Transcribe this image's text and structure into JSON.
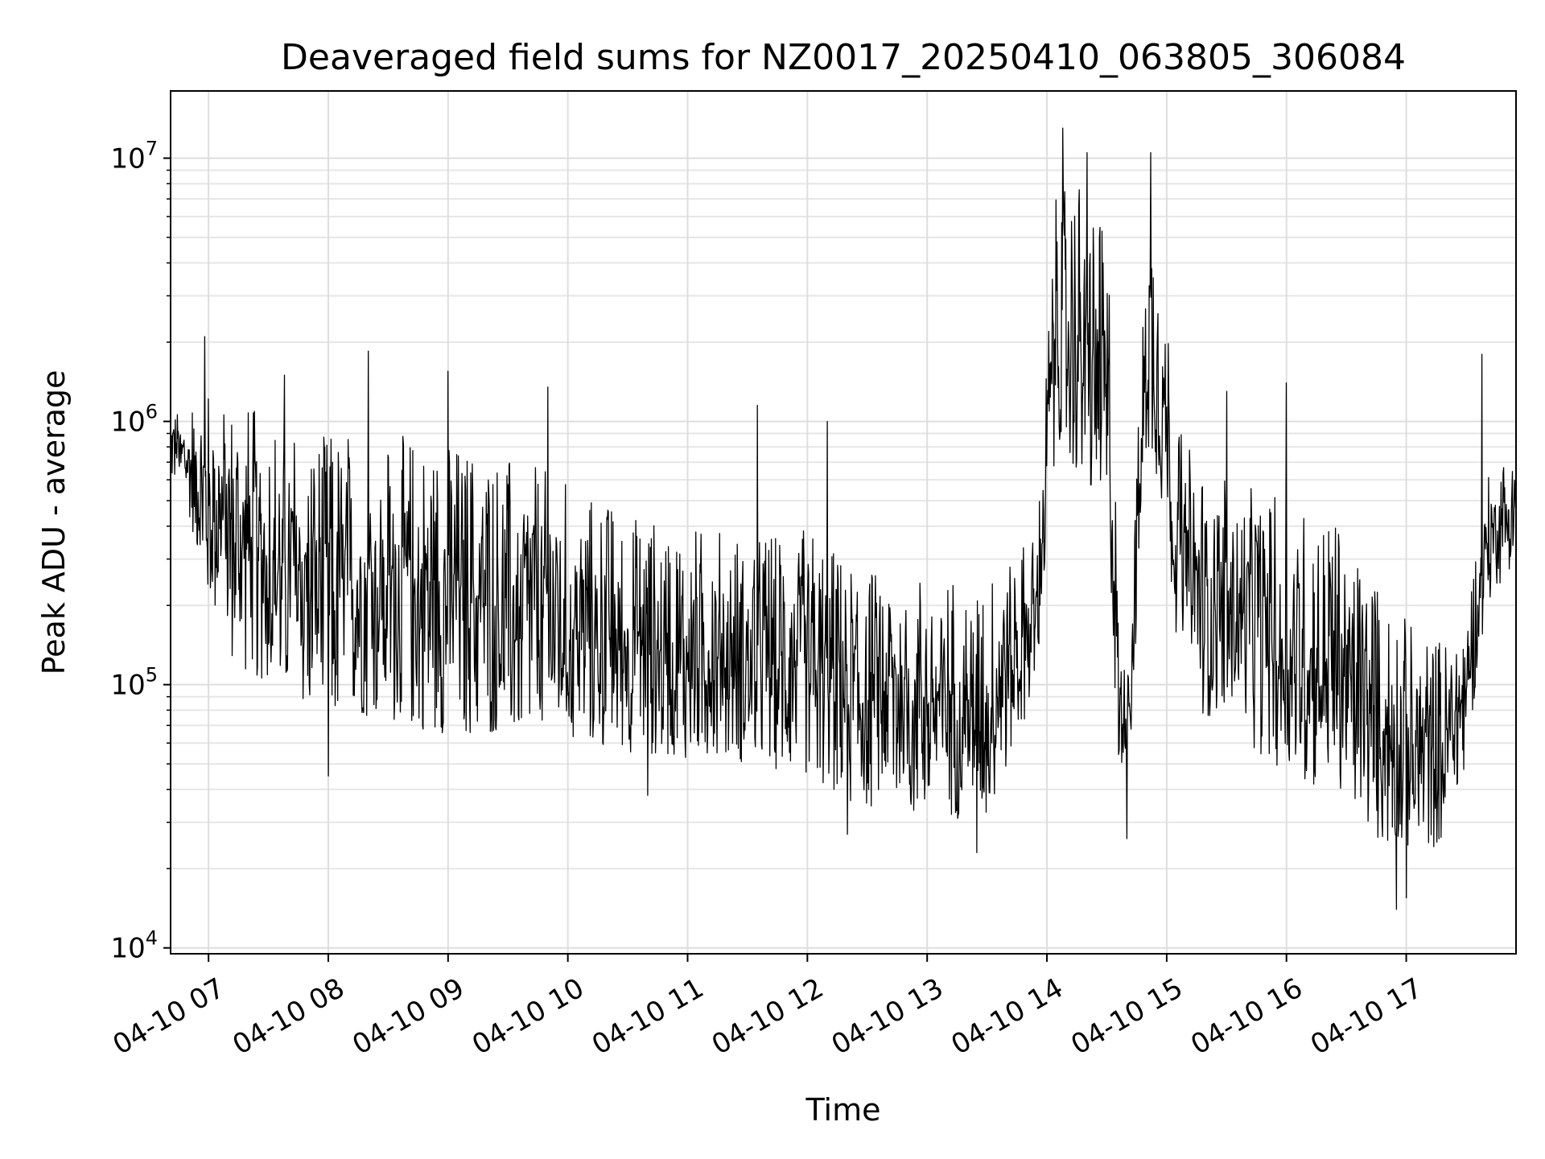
{
  "chart_data": {
    "type": "line",
    "title": "Deaveraged field sums for NZ0017_20250410_063805_306084",
    "xlabel": "Time",
    "ylabel": "Peak ADU - average",
    "yscale": "log",
    "ylim": [
      9500,
      18000000
    ],
    "xlim": [
      "2025-04-10 06:41",
      "2025-04-10 17:55"
    ],
    "grid": true,
    "line_color": "#000000",
    "x_ticks": [
      {
        "t": "2025-04-10 07:00",
        "label": "04-10 07"
      },
      {
        "t": "2025-04-10 08:00",
        "label": "04-10 08"
      },
      {
        "t": "2025-04-10 09:00",
        "label": "04-10 09"
      },
      {
        "t": "2025-04-10 10:00",
        "label": "04-10 10"
      },
      {
        "t": "2025-04-10 11:00",
        "label": "04-10 11"
      },
      {
        "t": "2025-04-10 12:00",
        "label": "04-10 12"
      },
      {
        "t": "2025-04-10 13:00",
        "label": "04-10 13"
      },
      {
        "t": "2025-04-10 14:00",
        "label": "04-10 14"
      },
      {
        "t": "2025-04-10 15:00",
        "label": "04-10 15"
      },
      {
        "t": "2025-04-10 16:00",
        "label": "04-10 16"
      },
      {
        "t": "2025-04-10 17:00",
        "label": "04-10 17"
      }
    ],
    "y_ticks": [
      {
        "value": 10000,
        "base": "10",
        "exp": "4"
      },
      {
        "value": 100000,
        "base": "10",
        "exp": "5"
      },
      {
        "value": 1000000,
        "base": "10",
        "exp": "6"
      },
      {
        "value": 10000000,
        "base": "10",
        "exp": "7"
      }
    ],
    "series": [
      {
        "envelope": [
          {
            "t": "2025-04-10 06:41",
            "low": 600000,
            "high": 1100000
          },
          {
            "t": "2025-04-10 06:50",
            "low": 450000,
            "high": 1200000
          },
          {
            "t": "2025-04-10 07:00",
            "low": 200000,
            "high": 1300000
          },
          {
            "t": "2025-04-10 07:15",
            "low": 110000,
            "high": 1200000
          },
          {
            "t": "2025-04-10 07:30",
            "low": 100000,
            "high": 1100000
          },
          {
            "t": "2025-04-10 07:45",
            "low": 80000,
            "high": 900000
          },
          {
            "t": "2025-04-10 08:00",
            "low": 70000,
            "high": 900000
          },
          {
            "t": "2025-04-10 08:15",
            "low": 75000,
            "high": 950000
          },
          {
            "t": "2025-04-10 08:30",
            "low": 70000,
            "high": 900000
          },
          {
            "t": "2025-04-10 09:00",
            "low": 65000,
            "high": 850000
          },
          {
            "t": "2025-04-10 09:30",
            "low": 62000,
            "high": 750000
          },
          {
            "t": "2025-04-10 10:00",
            "low": 60000,
            "high": 600000
          },
          {
            "t": "2025-04-10 10:30",
            "low": 55000,
            "high": 450000
          },
          {
            "t": "2025-04-10 11:00",
            "low": 52000,
            "high": 400000
          },
          {
            "t": "2025-04-10 11:30",
            "low": 50000,
            "high": 380000
          },
          {
            "t": "2025-04-10 12:00",
            "low": 45000,
            "high": 400000
          },
          {
            "t": "2025-04-10 12:20",
            "low": 35000,
            "high": 300000
          },
          {
            "t": "2025-04-10 12:45",
            "low": 32000,
            "high": 280000
          },
          {
            "t": "2025-04-10 13:00",
            "low": 32000,
            "high": 280000
          },
          {
            "t": "2025-04-10 13:30",
            "low": 30000,
            "high": 260000
          },
          {
            "t": "2025-04-10 13:55",
            "low": 100000,
            "high": 400000
          },
          {
            "t": "2025-04-10 14:05",
            "low": 800000,
            "high": 8000000
          },
          {
            "t": "2025-04-10 14:15",
            "low": 600000,
            "high": 8500000
          },
          {
            "t": "2025-04-10 14:25",
            "low": 400000,
            "high": 7000000
          },
          {
            "t": "2025-04-10 14:32",
            "low": 200000,
            "high": 4000000
          },
          {
            "t": "2025-04-10 14:36",
            "low": 45000,
            "high": 150000
          },
          {
            "t": "2025-04-10 14:42",
            "low": 60000,
            "high": 200000
          },
          {
            "t": "2025-04-10 14:50",
            "low": 800000,
            "high": 6000000
          },
          {
            "t": "2025-04-10 14:57",
            "low": 500000,
            "high": 6500000
          },
          {
            "t": "2025-04-10 15:05",
            "low": 150000,
            "high": 1000000
          },
          {
            "t": "2025-04-10 15:15",
            "low": 80000,
            "high": 700000
          },
          {
            "t": "2025-04-10 15:30",
            "low": 70000,
            "high": 600000
          },
          {
            "t": "2025-04-10 16:00",
            "low": 45000,
            "high": 500000
          },
          {
            "t": "2025-04-10 16:30",
            "low": 35000,
            "high": 400000
          },
          {
            "t": "2025-04-10 16:45",
            "low": 25000,
            "high": 250000
          },
          {
            "t": "2025-04-10 17:00",
            "low": 22000,
            "high": 180000
          },
          {
            "t": "2025-04-10 17:20",
            "low": 25000,
            "high": 150000
          },
          {
            "t": "2025-04-10 17:30",
            "low": 50000,
            "high": 200000
          },
          {
            "t": "2025-04-10 17:40",
            "low": 200000,
            "high": 600000
          },
          {
            "t": "2025-04-10 17:55",
            "low": 300000,
            "high": 900000
          }
        ],
        "peaks": [
          {
            "t": "2025-04-10 06:58",
            "value": 2100000
          },
          {
            "t": "2025-04-10 07:38",
            "value": 1500000
          },
          {
            "t": "2025-04-10 08:20",
            "value": 1850000
          },
          {
            "t": "2025-04-10 09:00",
            "value": 1550000
          },
          {
            "t": "2025-04-10 09:50",
            "value": 1350000
          },
          {
            "t": "2025-04-10 11:35",
            "value": 1150000
          },
          {
            "t": "2025-04-10 12:10",
            "value": 1000000
          },
          {
            "t": "2025-04-10 14:01",
            "value": 2200000
          },
          {
            "t": "2025-04-10 14:08",
            "value": 13000000
          },
          {
            "t": "2025-04-10 14:20",
            "value": 10500000
          },
          {
            "t": "2025-04-10 14:52",
            "value": 10500000
          },
          {
            "t": "2025-04-10 15:30",
            "value": 1300000
          },
          {
            "t": "2025-04-10 16:00",
            "value": 1400000
          },
          {
            "t": "2025-04-10 17:38",
            "value": 1800000
          }
        ],
        "dips": [
          {
            "t": "2025-04-10 08:00",
            "value": 45000
          },
          {
            "t": "2025-04-10 10:40",
            "value": 38000
          },
          {
            "t": "2025-04-10 12:20",
            "value": 27000
          },
          {
            "t": "2025-04-10 13:25",
            "value": 23000
          },
          {
            "t": "2025-04-10 14:40",
            "value": 26000
          },
          {
            "t": "2025-04-10 16:55",
            "value": 14000
          },
          {
            "t": "2025-04-10 17:00",
            "value": 15500
          }
        ]
      }
    ]
  }
}
